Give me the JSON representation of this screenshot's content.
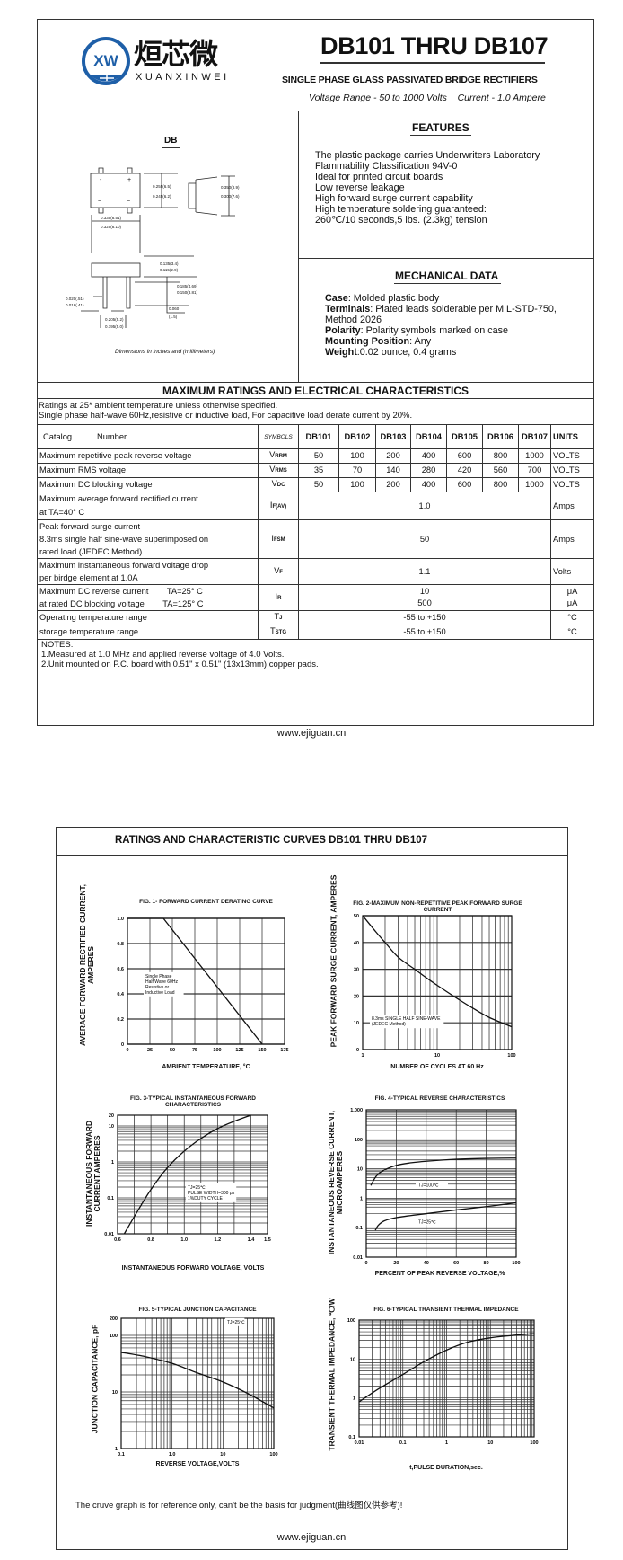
{
  "header": {
    "logo": {
      "mark": "XW",
      "chinese": "烜芯微",
      "latin": "XUANXINWEI",
      "color": "#1e5fa8"
    },
    "title": "DB101 THRU DB107",
    "subtitle": "SINGLE PHASE GLASS PASSIVATED BRIDGE RECTIFIERS",
    "voltage_range": "Voltage Range - 50 to 1000 Volts",
    "current": "Current -",
    "current_value": "1.0 Ampere"
  },
  "package": {
    "name": "DB",
    "dims": [
      "0.255(6.5)",
      "0.245(6.2)",
      "0.350(8.9)",
      "0.300(7.6)",
      "0.335(8.51)",
      "0.325(8.10)",
      "0.135(3.4)",
      "0.115(2.9)",
      "0.185(4.69)",
      "0.150(3.81)",
      "0.020(.51)",
      "0.016(.41)",
      "0.205(5.2)",
      "0.195(5.0)",
      "0.060",
      "(1.5)"
    ],
    "pin_symbols": [
      "-",
      "+",
      "~",
      "~"
    ],
    "caption": "Dimensions in inches and (millimeters)"
  },
  "features": {
    "heading": "FEATURES",
    "lines": [
      "The plastic package carries Underwriters Laboratory",
      "Flammability Classification 94V-0",
      "Ideal for printed circuit boards",
      "Low reverse leakage",
      "High forward surge current capability",
      "High temperature soldering guaranteed:",
      "260℃/10 seconds,5 lbs. (2.3kg) tension"
    ]
  },
  "mechanical": {
    "heading": "MECHANICAL DATA",
    "items": [
      {
        "label": "Case",
        "value": ": Molded plastic body"
      },
      {
        "label": "Terminals",
        "value": ": Plated leads solderable per MIL-STD-750,"
      },
      {
        "label": "",
        "value": " Method 2026"
      },
      {
        "label": "Polarity",
        "value": ": Polarity symbols marked on case"
      },
      {
        "label": "Mounting Position",
        "value": ": Any"
      },
      {
        "label": "Weight",
        "value": ":0.02 ounce, 0.4 grams"
      }
    ]
  },
  "ratings": {
    "heading": "MAXIMUM RATINGS AND ELECTRICAL CHARACTERISTICS",
    "notes_top": [
      "Ratings at 25* ambient temperature unless otherwise specified.",
      "Single phase half-wave 60Hz,resistive or inductive load, For capacitive load derate current by 20%."
    ],
    "header": {
      "catalog": "Catalog",
      "number": "Number",
      "symbols": "SYMBOLS",
      "parts": [
        "DB101",
        "DB102",
        "DB103",
        "DB104",
        "DB105",
        "DB106",
        "DB107"
      ],
      "units": "UNITS"
    },
    "rows_per_part": [
      {
        "param": "Maximum repetitive peak reverse voltage",
        "sym": "V",
        "sub": "RRM",
        "values": [
          "50",
          "100",
          "200",
          "400",
          "600",
          "800",
          "1000"
        ],
        "unit": "VOLTS"
      },
      {
        "param": "Maximum RMS voltage",
        "sym": "V",
        "sub": "RMS",
        "values": [
          "35",
          "70",
          "140",
          "280",
          "420",
          "560",
          "700"
        ],
        "unit": "VOLTS"
      },
      {
        "param": "Maximum DC blocking voltage",
        "sym": "V",
        "sub": "DC",
        "values": [
          "50",
          "100",
          "200",
          "400",
          "600",
          "800",
          "1000"
        ],
        "unit": "VOLTS"
      }
    ],
    "rows_common": [
      {
        "param": [
          "Maximum average forward rectified current",
          "at TA=40° C"
        ],
        "sym": "I",
        "sub": "F(AV)",
        "value": [
          "1.0"
        ],
        "unit": [
          "Amps"
        ]
      },
      {
        "param": [
          "Peak forward surge current",
          "8.3ms single half sine-wave superimposed on",
          "rated load (JEDEC Method)"
        ],
        "sym": "I",
        "sub": "FSM",
        "value": [
          "50"
        ],
        "unit": [
          "Amps"
        ]
      },
      {
        "param": [
          "Maximum instantaneous forward voltage drop",
          "per birdge element at 1.0A"
        ],
        "sym": "V",
        "sub": "F",
        "value": [
          "1.1"
        ],
        "unit": [
          "Volts"
        ]
      },
      {
        "param": [
          "Maximum DC reverse current        TA=25° C",
          "at rated DC blocking voltage        TA=125° C"
        ],
        "sym": "I",
        "sub": "R",
        "value": [
          "10",
          "500"
        ],
        "unit": [
          "μA",
          "μA"
        ]
      },
      {
        "param": [
          "Operating temperature range"
        ],
        "sym": "T",
        "sub": "J",
        "value": [
          "-55 to +150"
        ],
        "unit": [
          "°C"
        ]
      },
      {
        "param": [
          "storage temperature range"
        ],
        "sym": "T",
        "sub": "STG",
        "value": [
          "-55 to +150"
        ],
        "unit": [
          "°C"
        ]
      }
    ],
    "notes": [
      "NOTES:",
      "1.Measured at 1.0 MHz and applied reverse voltage of 4.0 Volts.",
      "2.Unit mounted on P.C. board with 0.51\"   x 0.51\"  (13x13mm) copper pads."
    ]
  },
  "footer_url": "www.ejiguan.cn",
  "curves_heading": "RATINGS AND CHARACTERISTIC CURVES DB101 THRU DB107",
  "disclaimer": "The cruve graph is for reference only, can't be the basis for judgment(曲线图仅供参考)!",
  "chart_data": [
    {
      "type": "line",
      "title": "FIG. 1- FORWARD CURRENT DERATING CURVE",
      "xlabel": "AMBIENT TEMPERATURE, °C",
      "ylabel": "AVERAGE FORWARD RECTIFIED CURRENT, AMPERES",
      "xscale": "linear",
      "yscale": "linear",
      "xlim": [
        0,
        175
      ],
      "ylim": [
        0,
        1.0
      ],
      "grid": true,
      "xticks": [
        0,
        25,
        50,
        75,
        100,
        125,
        150,
        175
      ],
      "xtick_labels": [
        "0",
        "25",
        "50",
        "75",
        "100",
        "125",
        "150",
        "175"
      ],
      "yticks": [
        0,
        0.2,
        0.4,
        0.6,
        0.8,
        1.0
      ],
      "ytick_labels": [
        "0",
        "0.2",
        "0.4",
        "0.6",
        "0.8",
        "1.0"
      ],
      "series": [
        {
          "points": [
            [
              0,
              1.0
            ],
            [
              40,
              1.0
            ],
            [
              150,
              0
            ]
          ]
        }
      ],
      "annotations": [
        [
          "Single Phase",
          "Half Wave 60Hz",
          "Resistive or",
          "Inductive Load"
        ]
      ]
    },
    {
      "type": "line",
      "title": "FIG. 2-MAXIMUM NON-REPETITIVE PEAK FORWARD SURGE CURRENT",
      "xlabel": "NUMBER OF CYCLES AT 60 Hz",
      "ylabel": "PEAK FORWARD SURGE CURRENT, AMPERES",
      "xscale": "log",
      "yscale": "linear",
      "xlim": [
        1,
        100
      ],
      "ylim": [
        0,
        50
      ],
      "grid": true,
      "xticks": [
        1,
        10,
        100
      ],
      "xtick_labels": [
        "1",
        "10",
        "100"
      ],
      "yticks": [
        0,
        10,
        20,
        30,
        40,
        50
      ],
      "ytick_labels": [
        "0",
        "10",
        "20",
        "30",
        "40",
        "50"
      ],
      "series": [
        {
          "points": [
            [
              1,
              50
            ],
            [
              1.5,
              44
            ],
            [
              2,
              40
            ],
            [
              3,
              34.5
            ],
            [
              5,
              30
            ],
            [
              7,
              27
            ],
            [
              10,
              24
            ],
            [
              20,
              18.5
            ],
            [
              30,
              15.5
            ],
            [
              50,
              12
            ],
            [
              100,
              8.5
            ]
          ]
        }
      ],
      "annotations": [
        [
          "8.3ms SINGLE HALF SINE-WAVE",
          "(JEDEC Method)"
        ]
      ]
    },
    {
      "type": "line",
      "title": "FIG. 3-TYPICAL INSTANTANEOUS FORWARD CHARACTERISTICS",
      "xlabel": "INSTANTANEOUS FORWARD VOLTAGE, VOLTS",
      "ylabel": "INSTANTANEOUS FORWARD CURRENT,AMPERES",
      "xscale": "linear",
      "yscale": "log",
      "xlim": [
        0.6,
        1.5
      ],
      "ylim": [
        0.01,
        20
      ],
      "grid": true,
      "xticks": [
        0.6,
        0.8,
        1.0,
        1.2,
        1.4,
        1.5
      ],
      "xtick_labels": [
        "0.6",
        "0.8",
        "1.0",
        "1.2",
        "1.4",
        "1.5"
      ],
      "yticks": [
        0.01,
        0.1,
        1,
        10,
        20
      ],
      "ytick_labels": [
        "0.01",
        "0.1",
        "1",
        "10",
        "20"
      ],
      "series": [
        {
          "points": [
            [
              0.64,
              0.01
            ],
            [
              0.7,
              0.03
            ],
            [
              0.8,
              0.17
            ],
            [
              0.9,
              0.7
            ],
            [
              1.0,
              2
            ],
            [
              1.1,
              4.5
            ],
            [
              1.2,
              8.5
            ],
            [
              1.3,
              13.5
            ],
            [
              1.4,
              20
            ]
          ]
        }
      ],
      "annotations": [
        [
          "TJ=25℃",
          "PULSE WIDTH=300 μs",
          "1%DUTY CYCLE"
        ]
      ]
    },
    {
      "type": "line",
      "title": "FIG. 4-TYPICAL REVERSE CHARACTERISTICS",
      "xlabel": "PERCENT OF PEAK REVERSE VOLTAGE,%",
      "ylabel": "INSTANTANEOUS REVERSE CURRENT, MICROAMPERES",
      "xscale": "linear",
      "yscale": "log",
      "xlim": [
        0,
        100
      ],
      "ylim": [
        0.01,
        1000
      ],
      "grid": true,
      "xticks": [
        0,
        20,
        40,
        60,
        80,
        100
      ],
      "xtick_labels": [
        "0",
        "20",
        "40",
        "60",
        "80",
        "100"
      ],
      "yticks": [
        0.01,
        0.1,
        1,
        10,
        100,
        1000
      ],
      "ytick_labels": [
        "0.01",
        "0.1",
        "1",
        "10",
        "100",
        "1,000"
      ],
      "series": [
        {
          "name": "TJ=100℃",
          "points": [
            [
              3,
              2.7
            ],
            [
              6,
              5
            ],
            [
              10,
              8
            ],
            [
              20,
              13
            ],
            [
              30,
              16
            ],
            [
              40,
              18
            ],
            [
              60,
              21
            ],
            [
              80,
              22.5
            ],
            [
              100,
              23
            ]
          ]
        },
        {
          "name": "TJ=25℃",
          "points": [
            [
              6,
              0.08
            ],
            [
              8,
              0.12
            ],
            [
              12,
              0.17
            ],
            [
              20,
              0.22
            ],
            [
              40,
              0.3
            ],
            [
              60,
              0.4
            ],
            [
              80,
              0.52
            ],
            [
              100,
              0.7
            ]
          ]
        }
      ]
    },
    {
      "type": "line",
      "title": "FIG. 5-TYPICAL JUNCTION CAPACITANCE",
      "xlabel": "REVERSE VOLTAGE,VOLTS",
      "ylabel": "JUNCTION CAPACITANCE, pF",
      "xscale": "log",
      "yscale": "log",
      "xlim": [
        0.1,
        100
      ],
      "ylim": [
        1,
        200
      ],
      "grid": true,
      "xticks": [
        0.1,
        1,
        10,
        100
      ],
      "xtick_labels": [
        "0.1",
        "1.0",
        "10",
        "100"
      ],
      "yticks": [
        1,
        10,
        100,
        200
      ],
      "ytick_labels": [
        "1",
        "10",
        "100",
        "200"
      ],
      "series": [
        {
          "points": [
            [
              0.1,
              50
            ],
            [
              0.3,
              42
            ],
            [
              1,
              32
            ],
            [
              3,
              22
            ],
            [
              10,
              15
            ],
            [
              30,
              9.5
            ],
            [
              100,
              5.2
            ]
          ]
        }
      ],
      "annotations": [
        [
          "TJ=25℃"
        ]
      ]
    },
    {
      "type": "line",
      "title": "FIG. 6-TYPICAL TRANSIENT THERMAL IMPEDANCE",
      "xlabel": "t,PULSE DURATION,sec.",
      "ylabel": "TRANSIENT THERMAL IMPEDANCE, ℃/W",
      "xscale": "log",
      "yscale": "log",
      "xlim": [
        0.01,
        100
      ],
      "ylim": [
        0.1,
        100
      ],
      "grid": true,
      "xticks": [
        0.01,
        0.1,
        1,
        10,
        100
      ],
      "xtick_labels": [
        "0.01",
        "0.1",
        "1",
        "10",
        "100"
      ],
      "yticks": [
        0.1,
        1,
        10,
        100
      ],
      "ytick_labels": [
        "0.1",
        "1",
        "10",
        "100"
      ],
      "series": [
        {
          "points": [
            [
              0.01,
              0.8
            ],
            [
              0.03,
              1.8
            ],
            [
              0.1,
              4
            ],
            [
              0.3,
              8.5
            ],
            [
              1,
              17
            ],
            [
              3,
              27
            ],
            [
              10,
              35
            ],
            [
              30,
              40
            ],
            [
              100,
              45
            ]
          ]
        }
      ]
    }
  ]
}
